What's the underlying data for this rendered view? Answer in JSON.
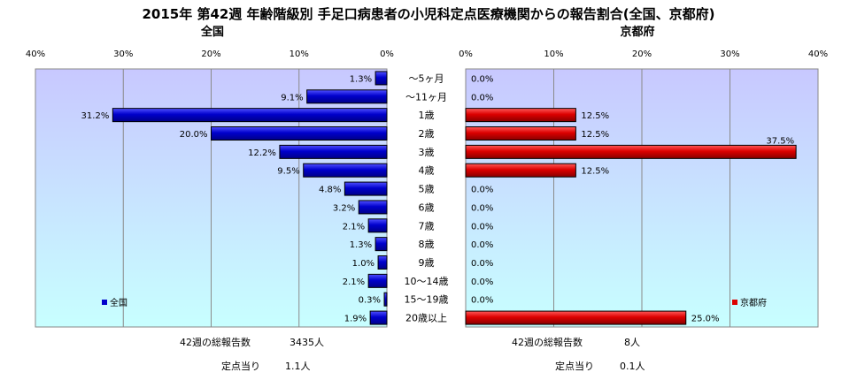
{
  "chart_data": {
    "type": "bar",
    "title": "2015年 第42週 年齢階級別 手足口病患者の小児科定点医療機関からの報告割合(全国、京都府)",
    "categories": [
      "～5ヶ月",
      "～11ヶ月",
      "1歳",
      "2歳",
      "3歳",
      "4歳",
      "5歳",
      "6歳",
      "7歳",
      "8歳",
      "9歳",
      "10～14歳",
      "15～19歳",
      "20歳以上"
    ],
    "axis_ticks": [
      "40%",
      "30%",
      "20%",
      "10%",
      "0%"
    ],
    "axis_ticks_right": [
      "0%",
      "10%",
      "20%",
      "30%",
      "40%"
    ],
    "xlim": [
      0,
      40
    ],
    "series": [
      {
        "name": "全国",
        "subtitle": "全国",
        "color": "#0000cc",
        "values": [
          1.3,
          9.1,
          31.2,
          20.0,
          12.2,
          9.5,
          4.8,
          3.2,
          2.1,
          1.3,
          1.0,
          2.1,
          0.3,
          1.9
        ],
        "labels": [
          "1.3%",
          "9.1%",
          "31.2%",
          "20.0%",
          "12.2%",
          "9.5%",
          "4.8%",
          "3.2%",
          "2.1%",
          "1.3%",
          "1.0%",
          "2.1%",
          "0.3%",
          "1.9%"
        ]
      },
      {
        "name": "京都府",
        "subtitle": "京都府",
        "color": "#dd0000",
        "values": [
          0.0,
          0.0,
          12.5,
          12.5,
          37.5,
          12.5,
          0.0,
          0.0,
          0.0,
          0.0,
          0.0,
          0.0,
          0.0,
          25.0
        ],
        "labels": [
          "0.0%",
          "0.0%",
          "12.5%",
          "12.5%",
          "37.5%",
          "12.5%",
          "0.0%",
          "0.0%",
          "0.0%",
          "0.0%",
          "0.0%",
          "0.0%",
          "0.0%",
          "25.0%"
        ]
      }
    ],
    "grid": true,
    "legend": "bottom-left"
  },
  "footer": {
    "national": {
      "total_label": "42週の総報告数",
      "total_value": "3435人",
      "per_label": "定点当り",
      "per_value": "1.1人"
    },
    "kyoto": {
      "total_label": "42週の総報告数",
      "total_value": "8人",
      "per_label": "定点当り",
      "per_value": "0.1人"
    }
  }
}
